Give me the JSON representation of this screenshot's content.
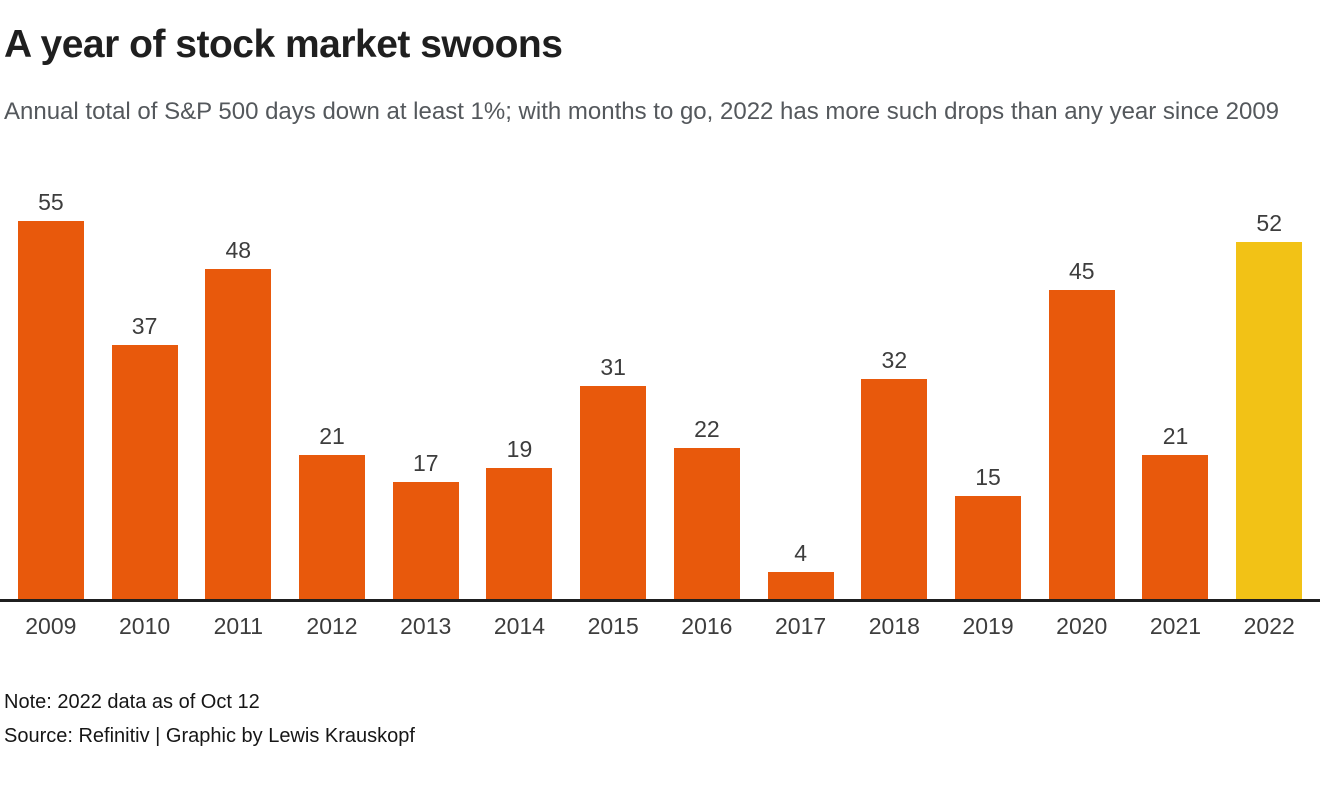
{
  "header": {
    "title": "A year of stock market swoons",
    "subtitle": "Annual total of S&P 500 days down at least 1%; with months to go, 2022 has more such drops than any year since 2009"
  },
  "chart_data": {
    "type": "bar",
    "title": "A year of stock market swoons",
    "subtitle": "Annual total of S&P 500 days down at least 1%; with months to go, 2022 has more such drops than any year since 2009",
    "categories": [
      "2009",
      "2010",
      "2011",
      "2012",
      "2013",
      "2014",
      "2015",
      "2016",
      "2017",
      "2018",
      "2019",
      "2020",
      "2021",
      "2022"
    ],
    "values": [
      55,
      37,
      48,
      21,
      17,
      19,
      31,
      22,
      4,
      32,
      15,
      45,
      21,
      52
    ],
    "value_labels_shown": true,
    "xlabel": "",
    "ylabel": "",
    "ylim": [
      0,
      55
    ],
    "grid": false,
    "legend": false,
    "bar_color": "#e8590c",
    "highlight_category": "2022",
    "highlight_color": "#f2c216",
    "axis_line_color": "#1f1f1f"
  },
  "footer": {
    "note": "Note: 2022 data as of Oct 12",
    "source": "Source: Refinitiv | Graphic by Lewis Krauskopf"
  }
}
